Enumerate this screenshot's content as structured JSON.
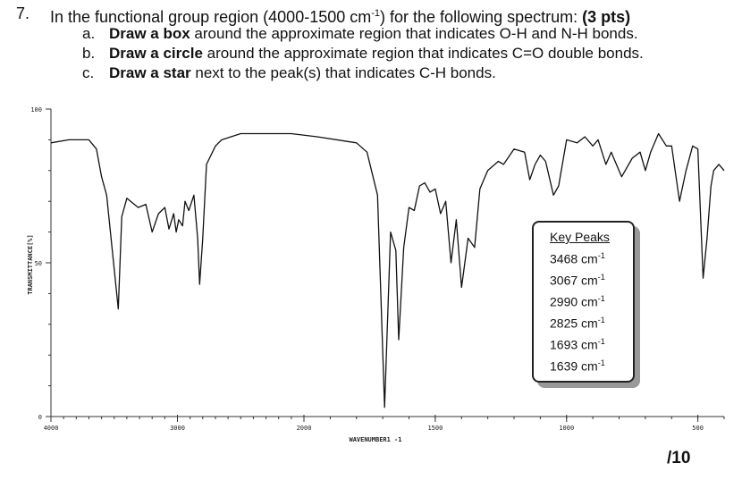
{
  "question": {
    "number": "7.",
    "text_before": "In the functional group region (4000-1500 cm",
    "text_sup": "-1",
    "text_after": ") for the following spectrum: ",
    "points": "(3 pts)",
    "items": [
      {
        "letter": "a.",
        "bold": "Draw a box",
        "rest": " around the approximate region that indicates O-H and N-H bonds."
      },
      {
        "letter": "b.",
        "bold": "Draw a circle",
        "rest": " around the approximate region that indicates C=O double bonds."
      },
      {
        "letter": "c.",
        "bold": "Draw a star",
        "rest": " next to the peak(s) that indicates C-H bonds."
      }
    ]
  },
  "score": "/10",
  "key_peaks": {
    "title": "Key Peaks",
    "unit_base": "cm",
    "unit_sup": "-1",
    "peaks": [
      "3468",
      "3067",
      "2990",
      "2825",
      "1693",
      "1639"
    ]
  },
  "chart_data": {
    "type": "line",
    "xlabel": "WAVENUMBER1 -1",
    "ylabel": "TRANSMITTANCE[%]",
    "xlim": [
      4000,
      400
    ],
    "ylim": [
      0,
      100
    ],
    "x_ticks": [
      "4000",
      "3000",
      "2000",
      "1500",
      "1000",
      "500"
    ],
    "y_ticks": [
      "100",
      "50",
      "0"
    ],
    "grid": false,
    "series": [
      {
        "points": [
          [
            4000,
            89
          ],
          [
            3860,
            90
          ],
          [
            3700,
            90
          ],
          [
            3640,
            87
          ],
          [
            3600,
            78
          ],
          [
            3560,
            72
          ],
          [
            3468,
            35
          ],
          [
            3440,
            65
          ],
          [
            3400,
            71
          ],
          [
            3370,
            70
          ],
          [
            3310,
            68
          ],
          [
            3250,
            69
          ],
          [
            3200,
            60
          ],
          [
            3150,
            66
          ],
          [
            3100,
            68
          ],
          [
            3067,
            61
          ],
          [
            3030,
            66
          ],
          [
            3010,
            60
          ],
          [
            2990,
            64
          ],
          [
            2960,
            62
          ],
          [
            2940,
            70
          ],
          [
            2910,
            67
          ],
          [
            2870,
            72
          ],
          [
            2840,
            58
          ],
          [
            2825,
            43
          ],
          [
            2800,
            58
          ],
          [
            2770,
            82
          ],
          [
            2700,
            88
          ],
          [
            2650,
            90
          ],
          [
            2500,
            92
          ],
          [
            2300,
            92
          ],
          [
            2100,
            92
          ],
          [
            1950,
            91
          ],
          [
            1800,
            89
          ],
          [
            1760,
            86
          ],
          [
            1720,
            72
          ],
          [
            1693,
            3
          ],
          [
            1670,
            60
          ],
          [
            1650,
            54
          ],
          [
            1639,
            25
          ],
          [
            1620,
            55
          ],
          [
            1600,
            68
          ],
          [
            1580,
            67
          ],
          [
            1560,
            75
          ],
          [
            1540,
            76
          ],
          [
            1520,
            73
          ],
          [
            1500,
            74
          ],
          [
            1480,
            66
          ],
          [
            1460,
            70
          ],
          [
            1440,
            50
          ],
          [
            1420,
            64
          ],
          [
            1400,
            42
          ],
          [
            1375,
            58
          ],
          [
            1350,
            55
          ],
          [
            1330,
            74
          ],
          [
            1300,
            80
          ],
          [
            1260,
            83
          ],
          [
            1240,
            82
          ],
          [
            1200,
            87
          ],
          [
            1160,
            86
          ],
          [
            1140,
            77
          ],
          [
            1120,
            82
          ],
          [
            1100,
            85
          ],
          [
            1080,
            83
          ],
          [
            1050,
            72
          ],
          [
            1030,
            75
          ],
          [
            1000,
            90
          ],
          [
            960,
            89
          ],
          [
            930,
            91
          ],
          [
            900,
            88
          ],
          [
            880,
            90
          ],
          [
            850,
            82
          ],
          [
            830,
            86
          ],
          [
            790,
            78
          ],
          [
            750,
            84
          ],
          [
            720,
            86
          ],
          [
            700,
            80
          ],
          [
            680,
            86
          ],
          [
            650,
            92
          ],
          [
            620,
            88
          ],
          [
            600,
            88
          ],
          [
            570,
            70
          ],
          [
            545,
            80
          ],
          [
            520,
            88
          ],
          [
            500,
            87
          ],
          [
            480,
            45
          ],
          [
            465,
            58
          ],
          [
            450,
            75
          ],
          [
            440,
            80
          ],
          [
            420,
            82
          ],
          [
            400,
            80
          ]
        ]
      }
    ]
  }
}
